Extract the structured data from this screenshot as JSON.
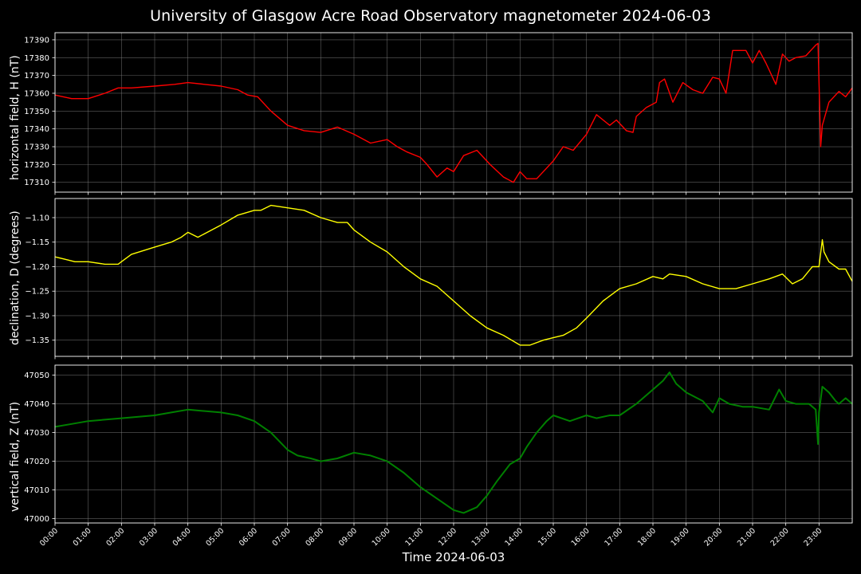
{
  "title": "University of Glasgow Acre Road Observatory magnetometer 2024-06-03",
  "xlabel": "Time 2024-06-03",
  "x_ticks": [
    "00:00",
    "01:00",
    "02:00",
    "03:00",
    "04:00",
    "05:00",
    "06:00",
    "07:00",
    "08:00",
    "09:00",
    "10:00",
    "11:00",
    "12:00",
    "13:00",
    "14:00",
    "15:00",
    "16:00",
    "17:00",
    "18:00",
    "19:00",
    "20:00",
    "21:00",
    "22:00",
    "23:00"
  ],
  "colors": {
    "background": "#000000",
    "grid": "#808080",
    "H": "#ff0000",
    "D": "#ffff00",
    "Z": "#008000"
  },
  "chart_data": [
    {
      "type": "line",
      "ylabel": "horizontal field, H (nT)",
      "x_unit": "hours",
      "xlim": [
        0,
        24
      ],
      "ylim": [
        17304.5,
        17394
      ],
      "y_ticks": [
        17310,
        17320,
        17330,
        17340,
        17350,
        17360,
        17370,
        17380,
        17390
      ],
      "grid": true,
      "series": [
        {
          "color": "#ff0000",
          "x": [
            0,
            0.5,
            1,
            1.5,
            1.9,
            2.3,
            3,
            3.6,
            4,
            5,
            5.5,
            5.8,
            6.1,
            6.5,
            7,
            7.5,
            8,
            8.5,
            9,
            9.5,
            10,
            10.3,
            10.6,
            11,
            11.2,
            11.5,
            11.8,
            12,
            12.3,
            12.7,
            13.1,
            13.5,
            13.8,
            14,
            14.2,
            14.5,
            14.8,
            15,
            15.3,
            15.6,
            16,
            16.3,
            16.7,
            16.9,
            17.2,
            17.4,
            17.5,
            17.8,
            18.1,
            18.2,
            18.35,
            18.6,
            18.9,
            19.2,
            19.5,
            19.8,
            20,
            20.2,
            20.4,
            20.8,
            21,
            21.2,
            21.4,
            21.7,
            21.9,
            22.1,
            22.3,
            22.6,
            22.9,
            22.97,
            23.05,
            23.1,
            23.3,
            23.6,
            23.8,
            24
          ],
          "y": [
            17359,
            17357,
            17357,
            17360,
            17363,
            17363,
            17364,
            17365,
            17366,
            17364,
            17362,
            17359,
            17358,
            17350,
            17342,
            17339,
            17338,
            17341,
            17337,
            17332,
            17334,
            17330,
            17327,
            17324,
            17320,
            17313,
            17318,
            17316,
            17325,
            17328,
            17320,
            17313,
            17310,
            17316,
            17312,
            17312,
            17318,
            17322,
            17330,
            17328,
            17337,
            17348,
            17342,
            17345,
            17339,
            17338,
            17347,
            17352,
            17355,
            17366,
            17368,
            17355,
            17366,
            17362,
            17360,
            17369,
            17368,
            17360,
            17384,
            17384,
            17377,
            17384,
            17377,
            17365,
            17382,
            17378,
            17380,
            17381,
            17387,
            17388,
            17330,
            17342,
            17355,
            17361,
            17358,
            17363
          ]
        }
      ]
    },
    {
      "type": "line",
      "ylabel": "declination, D (degrees)",
      "x_unit": "hours",
      "xlim": [
        0,
        24
      ],
      "ylim": [
        -1.383,
        -1.061
      ],
      "y_ticks": [
        -1.1,
        -1.15,
        -1.2,
        -1.25,
        -1.3,
        -1.35
      ],
      "y_tick_labels": [
        "−1.10",
        "−1.15",
        "−1.20",
        "−1.25",
        "−1.30",
        "−1.35"
      ],
      "grid": true,
      "series": [
        {
          "color": "#ffff00",
          "x": [
            0,
            0.3,
            0.6,
            1,
            1.5,
            1.9,
            2,
            2.3,
            3,
            3.5,
            3.8,
            4,
            4.3,
            5,
            5.5,
            6,
            6.2,
            6.5,
            7,
            7.5,
            8,
            8.5,
            8.8,
            9,
            9.5,
            10,
            10.5,
            11,
            11.5,
            12,
            12.5,
            13,
            13.5,
            14,
            14.3,
            14.7,
            15,
            15.3,
            15.7,
            16,
            16.5,
            17,
            17.5,
            18,
            18.3,
            18.5,
            19,
            19.5,
            20,
            20.5,
            21,
            21.5,
            21.9,
            22.2,
            22.5,
            22.8,
            23,
            23.1,
            23.15,
            23.3,
            23.6,
            23.8,
            24
          ],
          "y": [
            -1.18,
            -1.185,
            -1.19,
            -1.19,
            -1.195,
            -1.195,
            -1.19,
            -1.175,
            -1.16,
            -1.15,
            -1.14,
            -1.13,
            -1.14,
            -1.115,
            -1.095,
            -1.085,
            -1.085,
            -1.075,
            -1.08,
            -1.085,
            -1.1,
            -1.11,
            -1.11,
            -1.125,
            -1.15,
            -1.17,
            -1.2,
            -1.225,
            -1.24,
            -1.27,
            -1.3,
            -1.325,
            -1.34,
            -1.36,
            -1.36,
            -1.35,
            -1.345,
            -1.34,
            -1.325,
            -1.305,
            -1.27,
            -1.245,
            -1.235,
            -1.22,
            -1.225,
            -1.215,
            -1.22,
            -1.235,
            -1.245,
            -1.245,
            -1.235,
            -1.225,
            -1.215,
            -1.235,
            -1.225,
            -1.2,
            -1.2,
            -1.145,
            -1.17,
            -1.19,
            -1.205,
            -1.205,
            -1.23
          ]
        }
      ]
    },
    {
      "type": "line",
      "ylabel": "vertical field, Z (nT)",
      "x_unit": "hours",
      "xlim": [
        0,
        24
      ],
      "ylim": [
        46998.5,
        47053.5
      ],
      "y_ticks": [
        47000,
        47010,
        47020,
        47030,
        47040,
        47050
      ],
      "grid": true,
      "series": [
        {
          "color": "#008000",
          "x": [
            0,
            0.5,
            1,
            2,
            3,
            3.5,
            4,
            5,
            5.5,
            6,
            6.5,
            7,
            7.3,
            7.7,
            8,
            8.5,
            9,
            9.5,
            10,
            10.5,
            11,
            11.5,
            12,
            12.3,
            12.7,
            13,
            13.3,
            13.7,
            14,
            14.2,
            14.5,
            14.8,
            15,
            15.5,
            16,
            16.3,
            16.7,
            17,
            17.5,
            18,
            18.3,
            18.5,
            18.7,
            19,
            19.5,
            19.8,
            20,
            20.3,
            20.7,
            21,
            21.5,
            21.8,
            22,
            22.3,
            22.7,
            22.9,
            22.97,
            23.0,
            23.1,
            23.3,
            23.5,
            23.6,
            23.8,
            24
          ],
          "y": [
            47032,
            47033,
            47034,
            47035,
            47036,
            47037,
            47038,
            47037,
            47036,
            47034,
            47030,
            47024,
            47022,
            47021,
            47020,
            47021,
            47023,
            47022,
            47020,
            47016,
            47011,
            47007,
            47003,
            47002,
            47004,
            47008,
            47013,
            47019,
            47021,
            47025,
            47030,
            47034,
            47036,
            47034,
            47036,
            47035,
            47036,
            47036,
            47040,
            47045,
            47048,
            47051,
            47047,
            47044,
            47041,
            47037,
            47042,
            47040,
            47039,
            47039,
            47038,
            47045,
            47041,
            47040,
            47040,
            47038,
            47026,
            47037,
            47046,
            47044,
            47041,
            47040,
            47042,
            47040
          ]
        }
      ]
    }
  ]
}
